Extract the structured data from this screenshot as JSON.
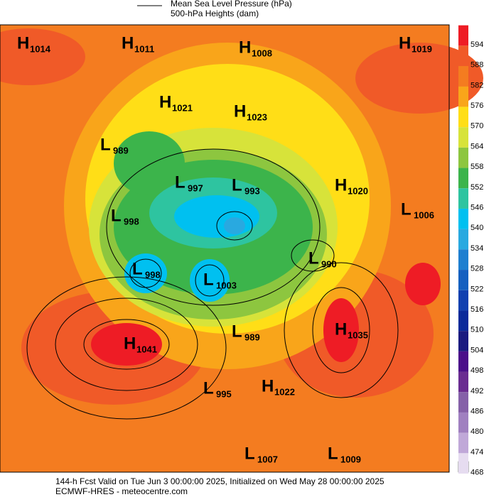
{
  "legend": {
    "items": [
      "Mean Sea Level Pressure (hPa)",
      "500-hPa Heights (dam)"
    ]
  },
  "colorbar": {
    "ticks": [
      594,
      588,
      582,
      576,
      570,
      564,
      558,
      552,
      546,
      540,
      534,
      528,
      522,
      516,
      510,
      504,
      498,
      492,
      486,
      480,
      474,
      468
    ],
    "colors": [
      "#ee1c25",
      "#f05a28",
      "#f47c20",
      "#f9a51a",
      "#ffde17",
      "#d7e33a",
      "#8dc63f",
      "#3cb44b",
      "#2ec4a0",
      "#00c0f0",
      "#29a9e0",
      "#1e7fd0",
      "#1560c0",
      "#1040b0",
      "#0a2a9a",
      "#1a1a80",
      "#4b0f8a",
      "#6a2c91",
      "#8560a8",
      "#a080c0",
      "#c0a8d8",
      "#e6dcf0"
    ]
  },
  "centers": [
    {
      "type": "H",
      "value": 1014
    },
    {
      "type": "H",
      "value": 1011
    },
    {
      "type": "H",
      "value": 1008
    },
    {
      "type": "H",
      "value": 1019
    },
    {
      "type": "H",
      "value": 1021
    },
    {
      "type": "H",
      "value": 1023
    },
    {
      "type": "L",
      "value": 989
    },
    {
      "type": "L",
      "value": 997
    },
    {
      "type": "L",
      "value": 993
    },
    {
      "type": "H",
      "value": 1020
    },
    {
      "type": "L",
      "value": 1006
    },
    {
      "type": "L",
      "value": 998
    },
    {
      "type": "L",
      "value": 998
    },
    {
      "type": "L",
      "value": 1003
    },
    {
      "type": "L",
      "value": 990
    },
    {
      "type": "L",
      "value": 989
    },
    {
      "type": "H",
      "value": 1035
    },
    {
      "type": "H",
      "value": 1041
    },
    {
      "type": "L",
      "value": 995
    },
    {
      "type": "H",
      "value": 1022
    },
    {
      "type": "L",
      "value": 1007
    },
    {
      "type": "L",
      "value": 1009
    }
  ],
  "footer": {
    "line1": "144-h Fcst Valid on Tue Jun  3 00:00:00 2025, Initialized on Wed May 28 00:00:00 2025",
    "line2": "ECMWF-HRES  - meteocentre.com"
  }
}
